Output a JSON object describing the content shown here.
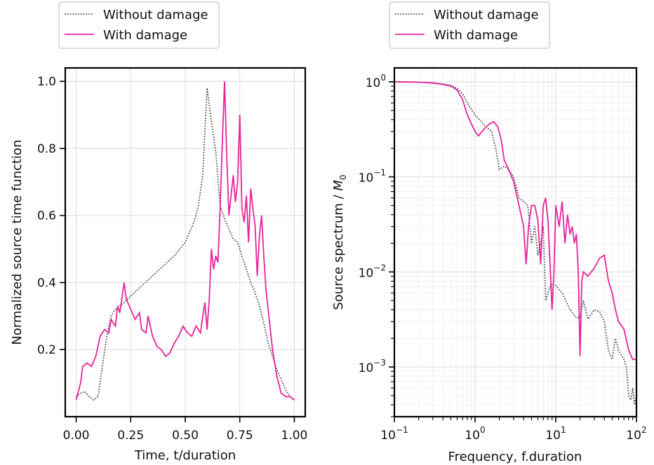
{
  "colors": {
    "without_damage": "#444444",
    "with_damage": "#e8249b",
    "grid": "#dcdcdc"
  },
  "chart_data": [
    {
      "type": "line",
      "xlabel": "Time, t/duration",
      "ylabel": "Normalized source time function",
      "xlim": [
        -0.05,
        1.05
      ],
      "ylim": [
        0.0,
        1.04
      ],
      "xticks": [
        0.0,
        0.25,
        0.5,
        0.75,
        1.0
      ],
      "xtick_labels": [
        "0.00",
        "0.25",
        "0.50",
        "0.75",
        "1.00"
      ],
      "yticks": [
        0.2,
        0.4,
        0.6,
        0.8,
        1.0
      ],
      "ytick_labels": [
        "0.2",
        "0.4",
        "0.6",
        "0.8",
        "1.0"
      ],
      "grid": true,
      "legend_position": "above-left",
      "series": [
        {
          "name": "Without damage",
          "style": "dotted",
          "x": [
            0.0,
            0.02,
            0.04,
            0.06,
            0.08,
            0.1,
            0.12,
            0.14,
            0.16,
            0.18,
            0.2,
            0.22,
            0.25,
            0.3,
            0.35,
            0.4,
            0.45,
            0.5,
            0.54,
            0.56,
            0.58,
            0.6,
            0.61,
            0.62,
            0.64,
            0.66,
            0.68,
            0.7,
            0.72,
            0.74,
            0.76,
            0.78,
            0.8,
            0.82,
            0.84,
            0.86,
            0.88,
            0.9,
            0.92,
            0.94,
            0.96,
            0.98,
            1.0
          ],
          "y": [
            0.06,
            0.07,
            0.075,
            0.06,
            0.05,
            0.06,
            0.15,
            0.24,
            0.3,
            0.32,
            0.33,
            0.34,
            0.36,
            0.39,
            0.42,
            0.45,
            0.48,
            0.52,
            0.58,
            0.63,
            0.72,
            0.98,
            0.93,
            0.88,
            0.79,
            0.63,
            0.59,
            0.56,
            0.53,
            0.52,
            0.48,
            0.44,
            0.4,
            0.37,
            0.33,
            0.28,
            0.22,
            0.18,
            0.14,
            0.11,
            0.08,
            0.06,
            0.05
          ]
        },
        {
          "name": "With damage",
          "style": "solid",
          "x": [
            0.0,
            0.02,
            0.03,
            0.05,
            0.07,
            0.09,
            0.11,
            0.13,
            0.15,
            0.16,
            0.18,
            0.19,
            0.2,
            0.22,
            0.23,
            0.25,
            0.27,
            0.29,
            0.3,
            0.32,
            0.33,
            0.35,
            0.37,
            0.39,
            0.41,
            0.43,
            0.45,
            0.47,
            0.49,
            0.51,
            0.53,
            0.55,
            0.57,
            0.58,
            0.59,
            0.6,
            0.61,
            0.62,
            0.63,
            0.64,
            0.65,
            0.66,
            0.67,
            0.68,
            0.69,
            0.7,
            0.71,
            0.72,
            0.73,
            0.74,
            0.75,
            0.76,
            0.77,
            0.78,
            0.79,
            0.8,
            0.81,
            0.82,
            0.83,
            0.84,
            0.85,
            0.86,
            0.87,
            0.88,
            0.9,
            0.92,
            0.94,
            0.96,
            0.98,
            1.0
          ],
          "y": [
            0.05,
            0.1,
            0.15,
            0.16,
            0.15,
            0.18,
            0.24,
            0.26,
            0.25,
            0.29,
            0.27,
            0.33,
            0.31,
            0.4,
            0.35,
            0.32,
            0.29,
            0.31,
            0.26,
            0.25,
            0.3,
            0.24,
            0.21,
            0.2,
            0.18,
            0.19,
            0.22,
            0.24,
            0.27,
            0.25,
            0.24,
            0.27,
            0.25,
            0.3,
            0.34,
            0.26,
            0.35,
            0.5,
            0.44,
            0.48,
            0.46,
            0.62,
            0.82,
            1.0,
            0.78,
            0.6,
            0.66,
            0.72,
            0.64,
            0.7,
            0.9,
            0.62,
            0.58,
            0.66,
            0.52,
            0.68,
            0.62,
            0.57,
            0.42,
            0.54,
            0.6,
            0.48,
            0.38,
            0.32,
            0.2,
            0.12,
            0.07,
            0.06,
            0.06,
            0.05
          ]
        }
      ]
    },
    {
      "type": "line",
      "xlabel": "Frequency, f.duration",
      "ylabel": "Source spectrum / M0",
      "ylabel_main": "Source spectrum / ",
      "ylabel_sym": "M",
      "ylabel_sub": "0",
      "xscale": "log",
      "yscale": "log",
      "xlim": [
        0.1,
        100
      ],
      "ylim": [
        0.0003,
        1.4
      ],
      "xticks": [
        0.1,
        1,
        10,
        100
      ],
      "xtick_labels": [
        {
          "base": "10",
          "exp": "−1"
        },
        {
          "base": "10",
          "exp": "0"
        },
        {
          "base": "10",
          "exp": "1"
        },
        {
          "base": "10",
          "exp": "2"
        }
      ],
      "yticks": [
        0.001,
        0.01,
        0.1,
        1
      ],
      "ytick_labels": [
        {
          "base": "10",
          "exp": "−3"
        },
        {
          "base": "10",
          "exp": "−2"
        },
        {
          "base": "10",
          "exp": "−1"
        },
        {
          "base": "10",
          "exp": "0"
        }
      ],
      "grid": true,
      "legend_position": "above-left",
      "series": [
        {
          "name": "Without damage",
          "style": "dotted",
          "x": [
            0.1,
            0.2,
            0.3,
            0.4,
            0.5,
            0.6,
            0.7,
            0.8,
            1.0,
            1.3,
            1.6,
            1.8,
            2.0,
            2.3,
            2.6,
            3.0,
            3.5,
            4.0,
            4.5,
            5.0,
            5.5,
            6.0,
            6.5,
            7.0,
            7.5,
            8.0,
            8.5,
            9.0,
            10,
            12,
            15,
            18,
            20,
            22,
            25,
            30,
            35,
            40,
            45,
            50,
            55,
            60,
            70,
            75,
            80,
            85,
            90,
            95,
            100
          ],
          "y": [
            1.0,
            0.99,
            0.98,
            0.95,
            0.92,
            0.85,
            0.75,
            0.6,
            0.45,
            0.35,
            0.3,
            0.2,
            0.12,
            0.13,
            0.12,
            0.1,
            0.06,
            0.055,
            0.05,
            0.02,
            0.03,
            0.015,
            0.02,
            0.03,
            0.005,
            0.006,
            0.007,
            0.0075,
            0.0072,
            0.006,
            0.004,
            0.0033,
            0.0033,
            0.005,
            0.0032,
            0.004,
            0.0038,
            0.003,
            0.0015,
            0.0012,
            0.002,
            0.0015,
            0.0012,
            0.001,
            0.0005,
            0.00045,
            0.0006,
            0.0004,
            0.0005
          ]
        },
        {
          "name": "With damage",
          "style": "solid",
          "x": [
            0.1,
            0.2,
            0.3,
            0.4,
            0.5,
            0.6,
            0.7,
            0.8,
            1.0,
            1.1,
            1.3,
            1.5,
            1.7,
            1.9,
            2.1,
            2.3,
            2.6,
            3.0,
            3.5,
            4.0,
            4.3,
            4.6,
            5.0,
            5.5,
            6.0,
            6.5,
            7.0,
            7.5,
            8.0,
            8.5,
            9.0,
            9.5,
            10,
            11,
            12,
            13,
            14,
            15,
            16,
            17,
            18,
            19,
            20,
            21,
            22,
            25,
            30,
            35,
            40,
            45,
            50,
            55,
            60,
            70,
            80,
            90,
            100
          ],
          "y": [
            1.0,
            0.99,
            0.97,
            0.94,
            0.9,
            0.82,
            0.65,
            0.45,
            0.3,
            0.27,
            0.32,
            0.36,
            0.38,
            0.34,
            0.25,
            0.15,
            0.12,
            0.09,
            0.05,
            0.03,
            0.012,
            0.03,
            0.05,
            0.05,
            0.035,
            0.012,
            0.05,
            0.06,
            0.035,
            0.012,
            0.004,
            0.01,
            0.05,
            0.03,
            0.055,
            0.02,
            0.04,
            0.025,
            0.03,
            0.02,
            0.025,
            0.01,
            0.0013,
            0.008,
            0.01,
            0.009,
            0.011,
            0.014,
            0.015,
            0.008,
            0.006,
            0.004,
            0.003,
            0.0025,
            0.0015,
            0.0012,
            0.0012
          ]
        }
      ]
    }
  ]
}
